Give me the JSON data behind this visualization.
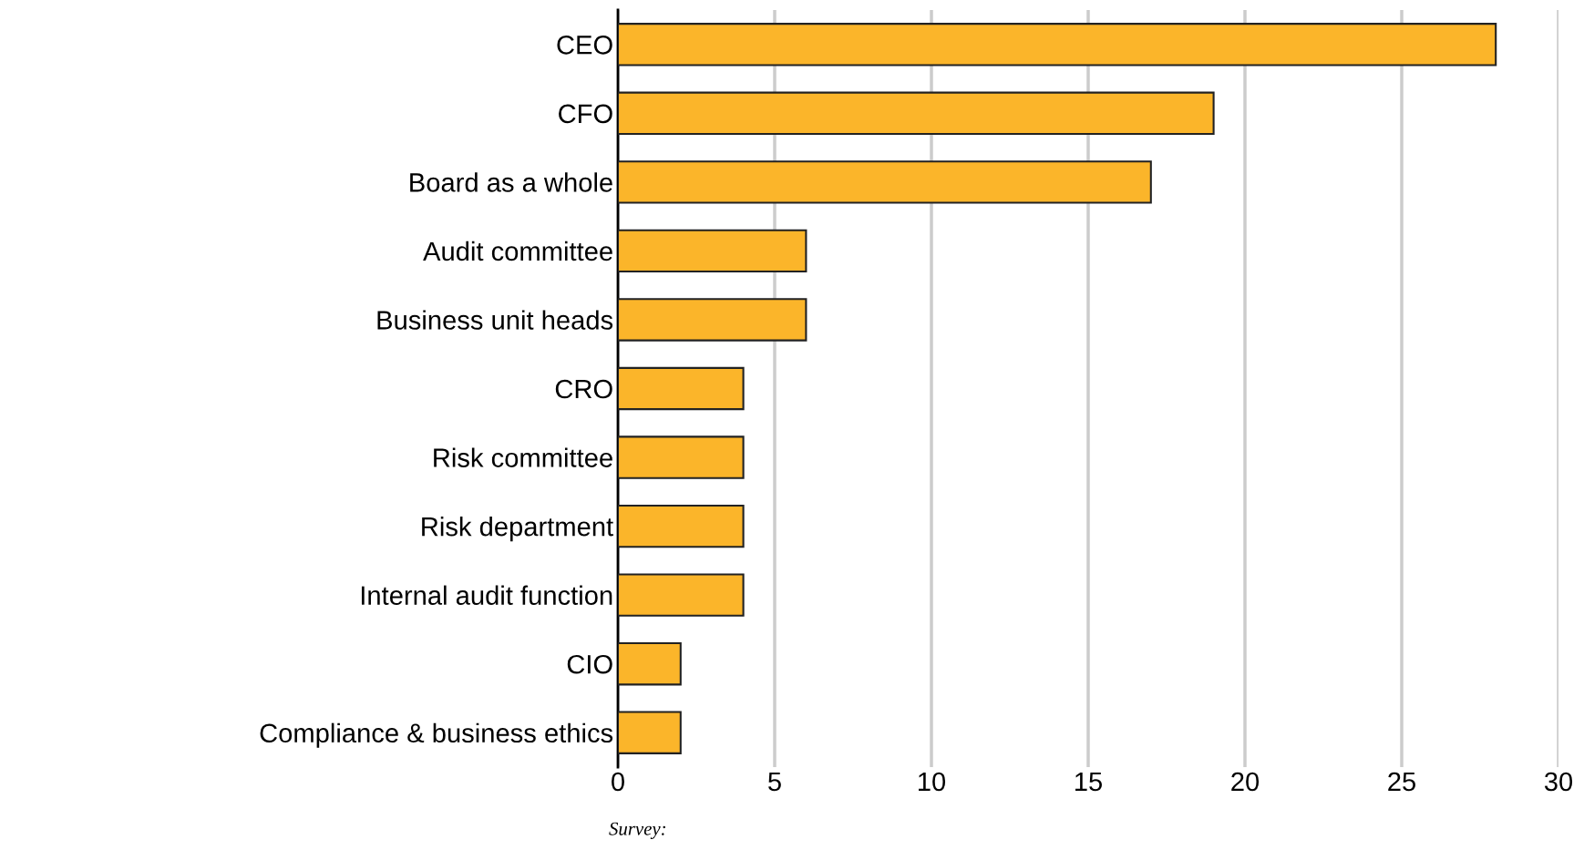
{
  "chart_data": {
    "type": "bar",
    "orientation": "horizontal",
    "categories": [
      "CEO",
      "CFO",
      "Board as a whole",
      "Audit committee",
      "Business unit heads",
      "CRO",
      "Risk committee",
      "Risk department",
      "Internal audit function",
      "CIO",
      "Compliance & business ethics"
    ],
    "values": [
      28,
      19,
      17,
      6,
      6,
      4,
      4,
      4,
      4,
      2,
      2
    ],
    "color": "#fbb52a",
    "xlim": [
      0,
      30
    ],
    "xticks": [
      0,
      5,
      10,
      15,
      20,
      25,
      30
    ],
    "grid": "x",
    "annotations": [
      "Survey:"
    ]
  }
}
